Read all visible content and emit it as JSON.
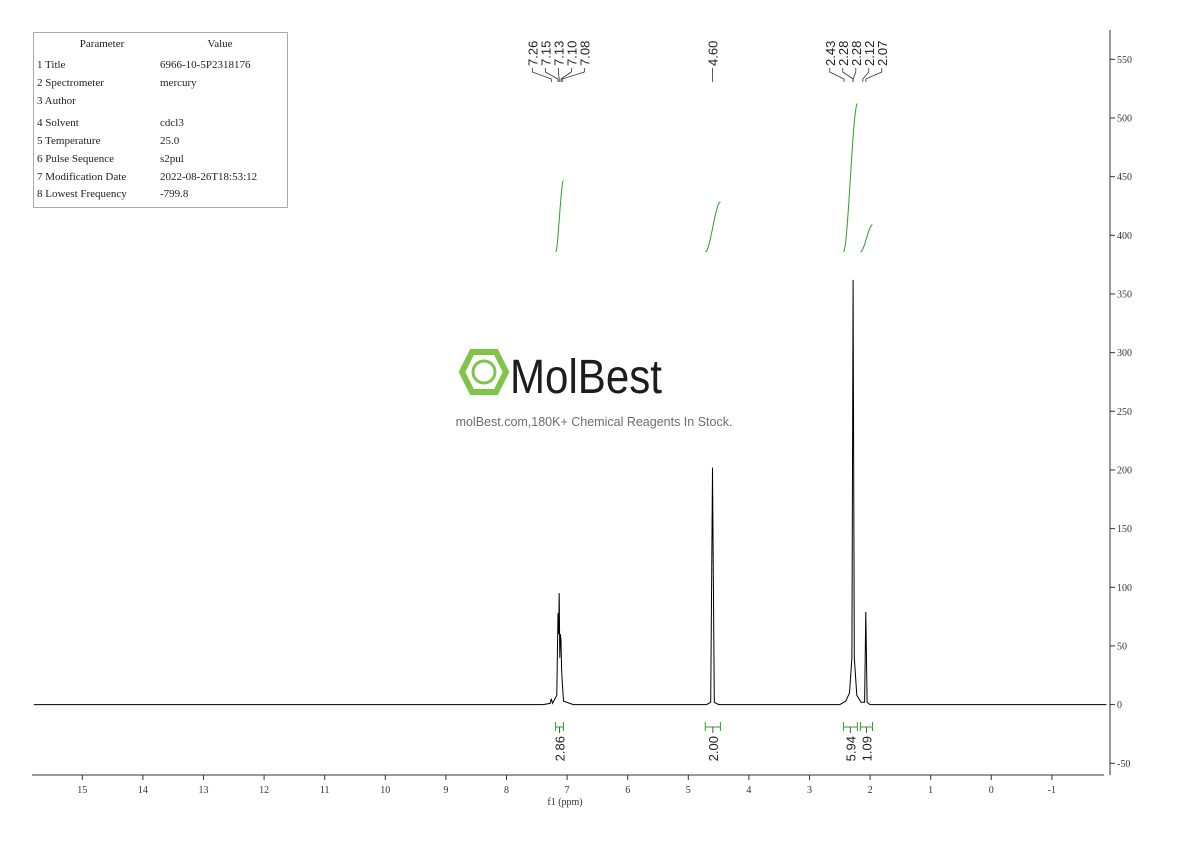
{
  "parameters": {
    "header": [
      "Parameter",
      "Value"
    ],
    "rows": [
      [
        "1 Title",
        "6966-10-5P2318176"
      ],
      [
        "2 Spectrometer",
        "mercury"
      ],
      [
        "3 Author"
      ],
      [
        "4 Solvent",
        "cdcl3"
      ],
      [
        "5 Temperature",
        "25.0"
      ],
      [
        "6 Pulse Sequence",
        "s2pul"
      ],
      [
        "7 Modification Date",
        "2022-08-26T18:53:12"
      ],
      [
        "8 Lowest Frequency",
        "-799.8"
      ]
    ]
  },
  "watermark": {
    "brand": "MolBest",
    "tagline": "molBest.com,180K+ Chemical Reagents In Stock."
  },
  "chart_data": {
    "type": "line",
    "xlabel": "f1 (ppm)",
    "color": "#000000",
    "x": [
      15.8,
      7.4,
      7.28,
      7.26,
      7.24,
      7.17,
      7.15,
      7.14,
      7.13,
      7.12,
      7.11,
      7.1,
      7.09,
      7.08,
      7.06,
      6.9,
      4.7,
      4.63,
      4.6,
      4.57,
      4.5,
      2.5,
      2.4,
      2.34,
      2.3,
      2.28,
      2.26,
      2.22,
      2.15,
      2.09,
      2.07,
      2.05,
      2.0,
      -1.9
    ],
    "values": [
      0,
      0,
      1,
      5,
      1,
      8,
      78,
      60,
      95,
      40,
      60,
      55,
      30,
      20,
      3,
      0,
      0,
      2,
      202,
      2,
      0,
      0,
      3,
      10,
      40,
      362,
      40,
      8,
      2,
      2,
      79,
      2,
      0,
      0
    ],
    "xlim": [
      15.83,
      -1.86
    ],
    "xticks": [
      15,
      14,
      13,
      12,
      11,
      10,
      9,
      8,
      7,
      6,
      5,
      4,
      3,
      2,
      1,
      0,
      -1
    ],
    "ylim": [
      -60,
      575
    ],
    "yticks": [
      -50,
      0,
      50,
      100,
      150,
      200,
      250,
      300,
      350,
      400,
      450,
      500,
      550
    ],
    "peaks": {
      "values": [
        7.26,
        7.15,
        7.13,
        7.1,
        7.08,
        4.6,
        2.43,
        2.28,
        2.28,
        2.12,
        2.07
      ],
      "value_labels": [
        "7.26",
        "7.15",
        "7.13",
        "7.10",
        "7.08",
        "4.60",
        "2.43",
        "2.28",
        "2.28",
        "2.12",
        "2.07"
      ]
    },
    "integrals": {
      "color": "#2ca02c",
      "ranges": [
        [
          7.19,
          7.06
        ],
        [
          4.72,
          4.47
        ],
        [
          2.44,
          2.21
        ],
        [
          2.16,
          1.96
        ]
      ],
      "values": [
        2.86,
        2,
        5.94,
        1.09
      ],
      "value_labels": [
        "2.86",
        "2.00",
        "5.94",
        "1.09"
      ]
    }
  }
}
